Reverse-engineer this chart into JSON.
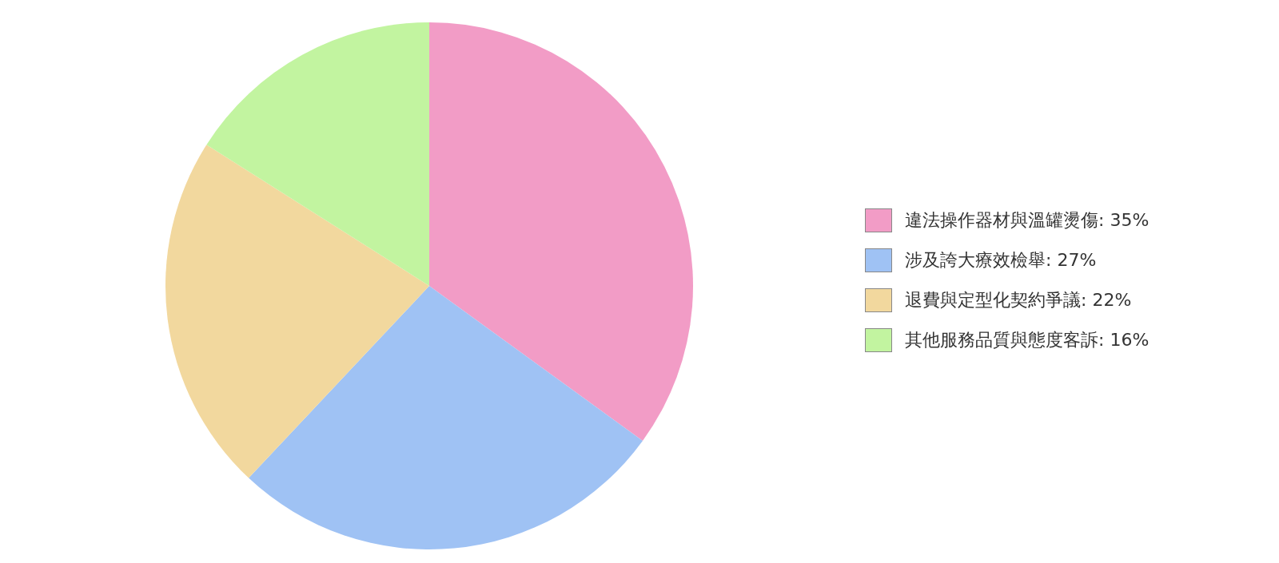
{
  "chart_data": {
    "type": "pie",
    "categories": [
      "違法操作器材與溫罐燙傷",
      "涉及誇大療效檢舉",
      "退費與定型化契約爭議",
      "其他服務品質與態度客訴"
    ],
    "values": [
      35,
      27,
      22,
      16
    ],
    "value_labels": [
      ": 35%",
      ": 27%",
      ": 22%",
      ": 16%"
    ],
    "colors": [
      "#f29cc6",
      "#9fc2f4",
      "#f2d89e",
      "#c2f4a0"
    ],
    "legend": "right"
  }
}
